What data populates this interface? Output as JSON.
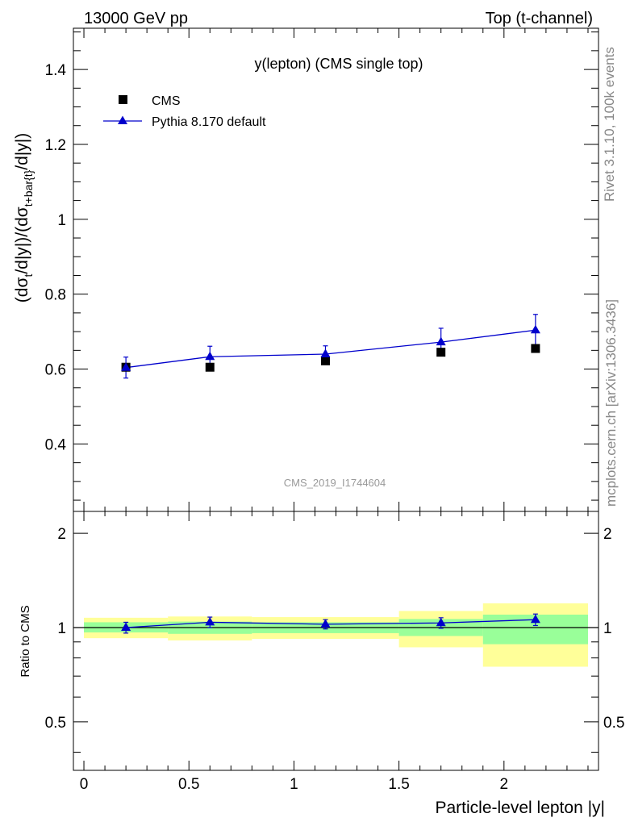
{
  "header": {
    "left": "13000 GeV pp",
    "right": "Top (t-channel)"
  },
  "side_labels": {
    "rivet": "Rivet 3.1.10,  100k events",
    "site": "mcplots.cern.ch [arXiv:1306.3436]"
  },
  "watermark": "CMS_2019_I1744604",
  "chart_data": [
    {
      "type": "scatter",
      "panel": "main",
      "title": "y(lepton) (CMS single top)",
      "ylabel": "(dσ_t/d|y|)/(dσ_t+bar{t}/d|y|)",
      "xlim": [
        -0.05,
        2.45
      ],
      "ylim": [
        0.22,
        1.51
      ],
      "yticks": [
        0.4,
        0.6,
        0.8,
        1.0,
        1.2,
        1.4
      ],
      "ytick_labels": [
        "0.4",
        "0.6",
        "0.8",
        "1",
        "1.2",
        "1.4"
      ],
      "legend_position": "top-left",
      "series": [
        {
          "name": "CMS",
          "marker": "square",
          "color": "#000000",
          "x": [
            0.2,
            0.6,
            1.15,
            1.7,
            2.15
          ],
          "y": [
            0.605,
            0.605,
            0.622,
            0.645,
            0.655
          ]
        },
        {
          "name": "Pythia 8.170 default",
          "marker": "triangle",
          "color": "#0000cc",
          "x": [
            0.2,
            0.6,
            1.15,
            1.7,
            2.15
          ],
          "y": [
            0.604,
            0.633,
            0.64,
            0.672,
            0.704
          ],
          "yerr": [
            0.028,
            0.028,
            0.022,
            0.037,
            0.042
          ]
        }
      ]
    },
    {
      "type": "line",
      "panel": "ratio",
      "xlabel": "Particle-level lepton |y|",
      "ylabel": "Ratio to CMS",
      "xlim": [
        -0.05,
        2.45
      ],
      "ylim": [
        0.35,
        2.35
      ],
      "xticks": [
        0,
        0.5,
        1,
        1.5,
        2
      ],
      "xtick_labels": [
        "0",
        "0.5",
        "1",
        "1.5",
        "2"
      ],
      "yticks": [
        0.5,
        1,
        2
      ],
      "ytick_labels": [
        "0.5",
        "1",
        "2"
      ],
      "bands": {
        "bin_edges": [
          0,
          0.4,
          0.8,
          1.5,
          1.9,
          2.4
        ],
        "inner_color": "#99ff99",
        "outer_color": "#ffff99",
        "inner_low": [
          0.965,
          0.955,
          0.96,
          0.94,
          0.885
        ],
        "inner_high": [
          1.04,
          1.045,
          1.04,
          1.065,
          1.1
        ],
        "outer_low": [
          0.925,
          0.91,
          0.92,
          0.865,
          0.75
        ],
        "outer_high": [
          1.075,
          1.085,
          1.08,
          1.13,
          1.195
        ]
      },
      "series": [
        {
          "name": "Pythia 8.170 default",
          "color": "#0000cc",
          "x": [
            0.2,
            0.6,
            1.15,
            1.7,
            2.15
          ],
          "y": [
            1.0,
            1.04,
            1.025,
            1.035,
            1.06
          ],
          "yerr": [
            0.04,
            0.04,
            0.035,
            0.04,
            0.045
          ]
        }
      ]
    }
  ]
}
